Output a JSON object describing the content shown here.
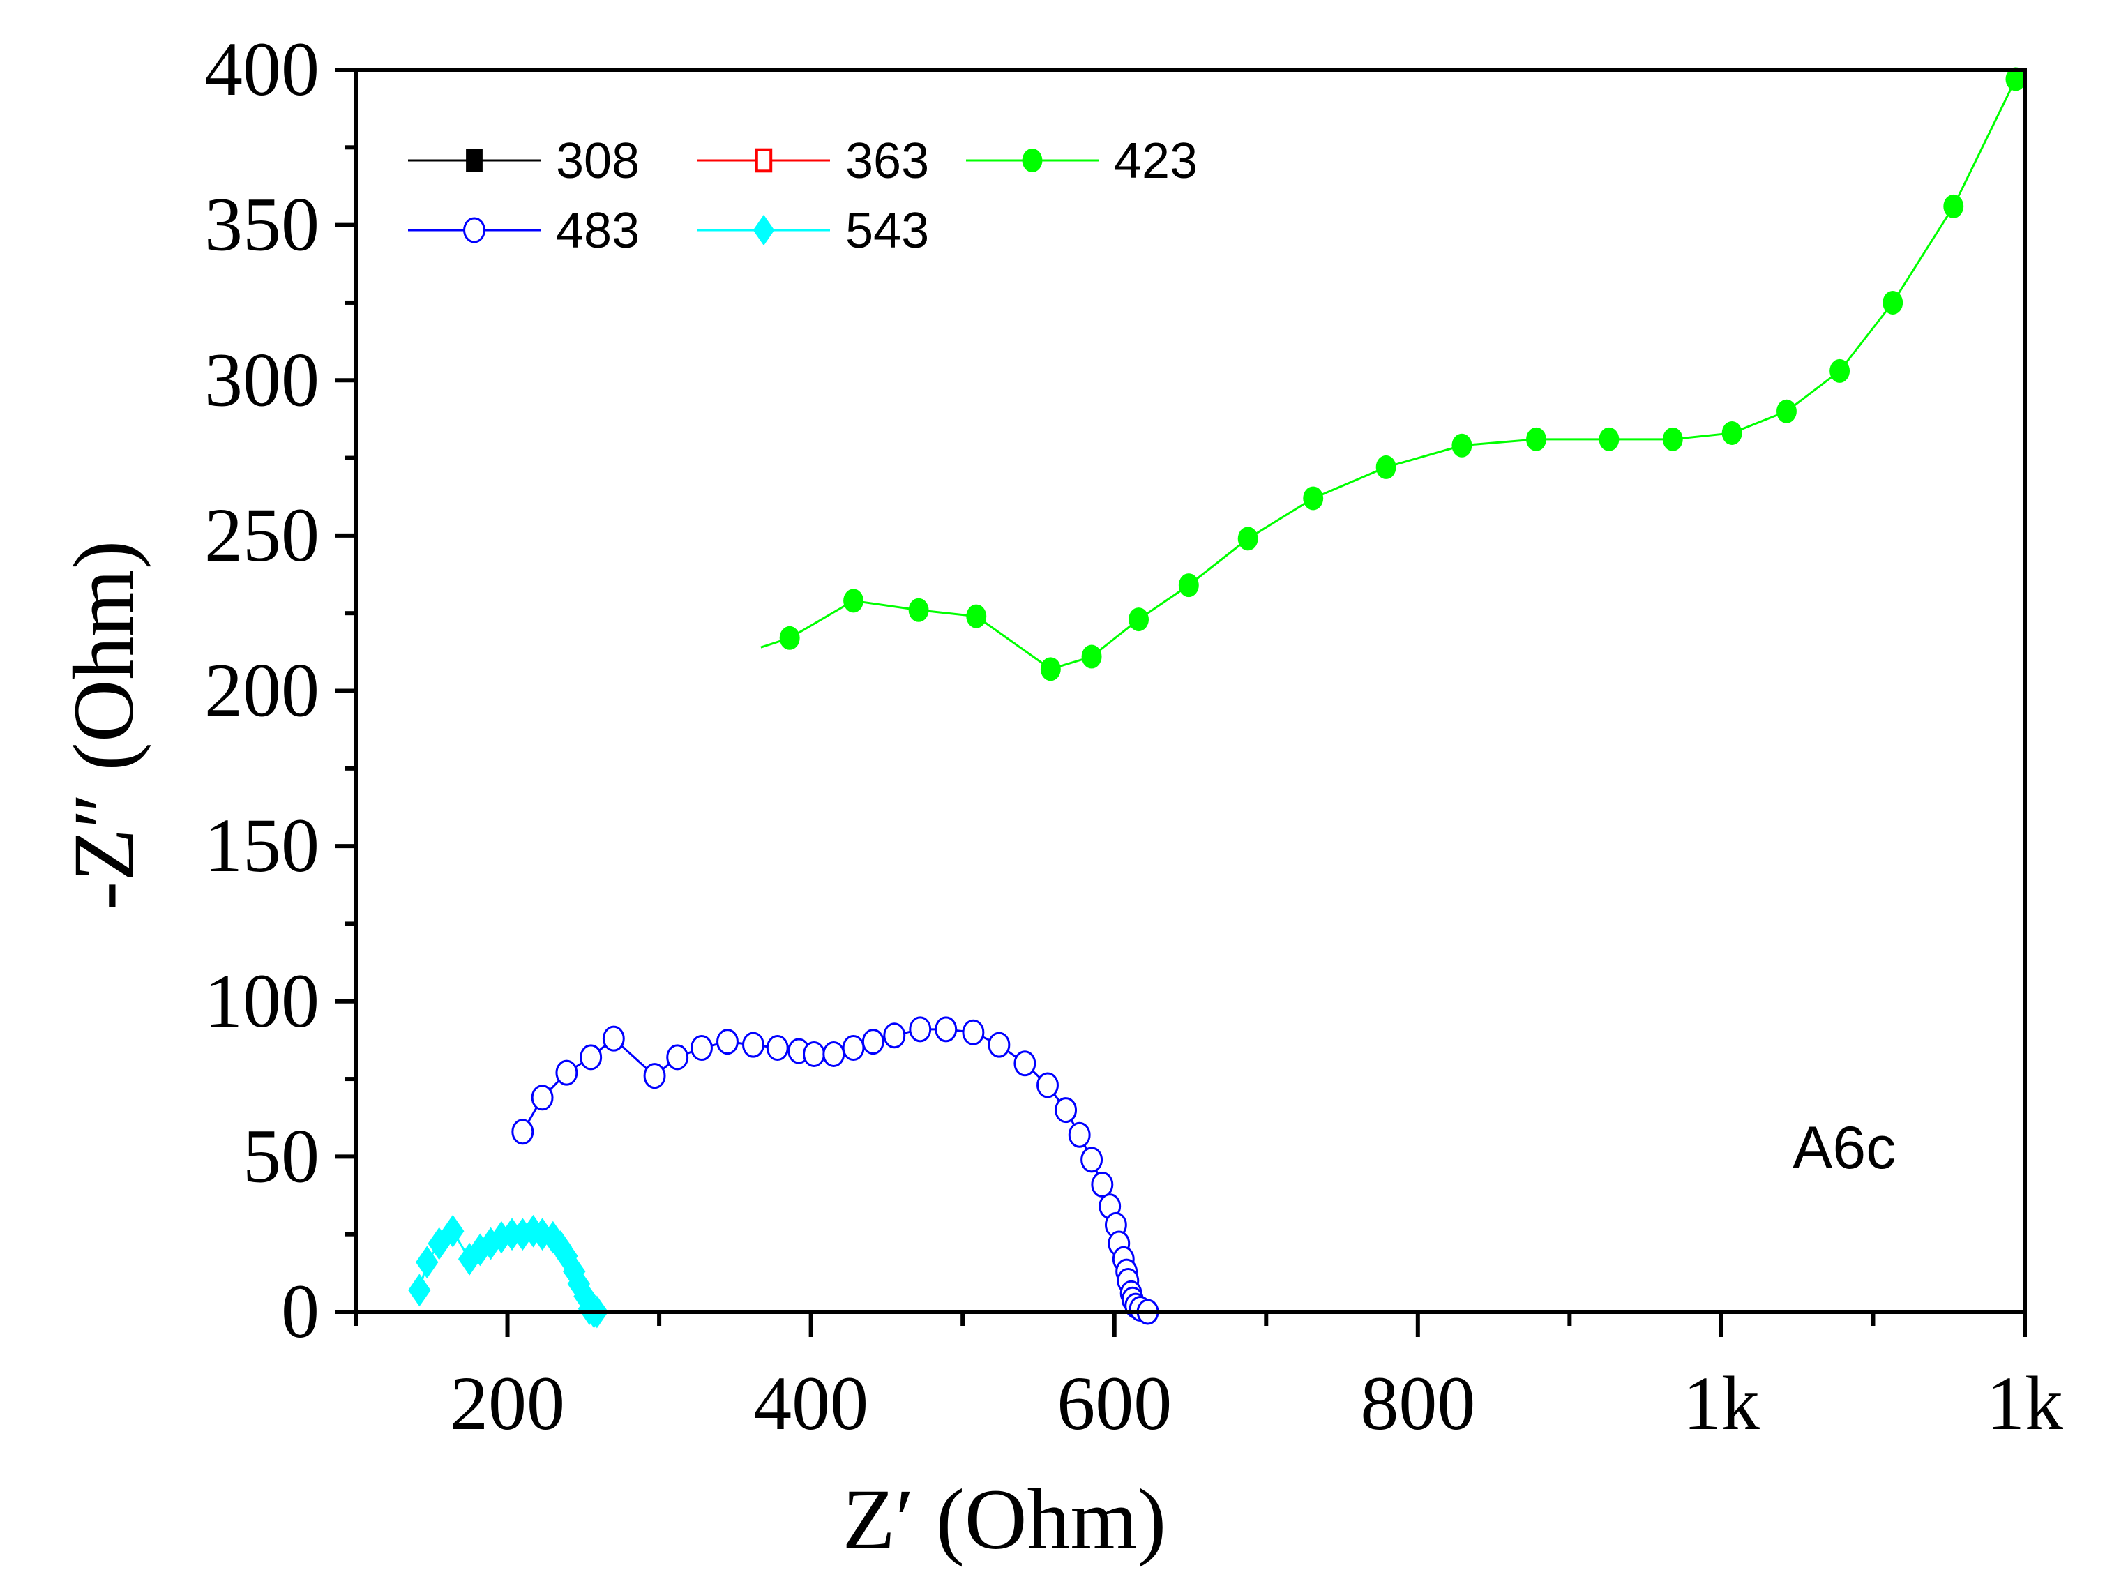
{
  "chart_data": {
    "type": "scatter",
    "title": "",
    "xlabel": "Z′ (Ohm)",
    "ylabel": "-Z″ (Ohm)",
    "xlim": [
      100,
      1200
    ],
    "ylim": [
      0,
      400
    ],
    "x_major_ticks": [
      200,
      400,
      600,
      800,
      1000,
      1200
    ],
    "x_tick_labels": [
      "200",
      "400",
      "600",
      "800",
      "1k",
      "1k"
    ],
    "x_minor_ticks": [
      100,
      300,
      500,
      700,
      900,
      1100
    ],
    "y_major_ticks": [
      0,
      50,
      100,
      150,
      200,
      250,
      300,
      350,
      400
    ],
    "y_tick_labels": [
      "0",
      "50",
      "100",
      "150",
      "200",
      "250",
      "300",
      "350",
      "400"
    ],
    "y_minor_ticks": [
      25,
      75,
      125,
      175,
      225,
      275,
      325,
      375
    ],
    "grid": false,
    "legend_position": "top-left",
    "annotation": "A6c",
    "series": [
      {
        "name": "308",
        "color": "#000000",
        "marker": "square-filled",
        "points": []
      },
      {
        "name": "363",
        "color": "#ff0000",
        "marker": "square-open",
        "points": []
      },
      {
        "name": "423",
        "color": "#00ff00",
        "marker": "circle-filled",
        "line_start": [
          367,
          214
        ],
        "points": [
          [
            386,
            217
          ],
          [
            428,
            229
          ],
          [
            471,
            226
          ],
          [
            509,
            224
          ],
          [
            558,
            207
          ],
          [
            585,
            211
          ],
          [
            616,
            223
          ],
          [
            649,
            234
          ],
          [
            688,
            249
          ],
          [
            731,
            262
          ],
          [
            779,
            272
          ],
          [
            829,
            279
          ],
          [
            878,
            281
          ],
          [
            926,
            281
          ],
          [
            968,
            281
          ],
          [
            1007,
            283
          ],
          [
            1043,
            290
          ],
          [
            1078,
            303
          ],
          [
            1113,
            325
          ],
          [
            1153,
            356
          ],
          [
            1194,
            397
          ]
        ]
      },
      {
        "name": "483",
        "color": "#0000ff",
        "marker": "circle-open",
        "points": [
          [
            210,
            58
          ],
          [
            223,
            69
          ],
          [
            239,
            77
          ],
          [
            255,
            82
          ],
          [
            270,
            88
          ],
          [
            297,
            76
          ],
          [
            312,
            82
          ],
          [
            328,
            85
          ],
          [
            345,
            87
          ],
          [
            362,
            86
          ],
          [
            378,
            85
          ],
          [
            392,
            84
          ],
          [
            402,
            83
          ],
          [
            415,
            83
          ],
          [
            428,
            85
          ],
          [
            441,
            87
          ],
          [
            455,
            89
          ],
          [
            472,
            91
          ],
          [
            489,
            91
          ],
          [
            507,
            90
          ],
          [
            524,
            86
          ],
          [
            541,
            80
          ],
          [
            556,
            73
          ],
          [
            568,
            65
          ],
          [
            577,
            57
          ],
          [
            585,
            49
          ],
          [
            592,
            41
          ],
          [
            597,
            34
          ],
          [
            601,
            28
          ],
          [
            603,
            22
          ],
          [
            606,
            17
          ],
          [
            608,
            13
          ],
          [
            609,
            10
          ],
          [
            611,
            6
          ],
          [
            612,
            4
          ],
          [
            614,
            2
          ],
          [
            617,
            1
          ],
          [
            622,
            0
          ]
        ]
      },
      {
        "name": "543",
        "color": "#00ffff",
        "marker": "diamond-filled",
        "points": [
          [
            142,
            7
          ],
          [
            147,
            16
          ],
          [
            155,
            22
          ],
          [
            164,
            26
          ],
          [
            175,
            17
          ],
          [
            182,
            20
          ],
          [
            189,
            22
          ],
          [
            196,
            24
          ],
          [
            203,
            25
          ],
          [
            210,
            25
          ],
          [
            217,
            26
          ],
          [
            223,
            25
          ],
          [
            230,
            24
          ],
          [
            235,
            21
          ],
          [
            239,
            18
          ],
          [
            244,
            13
          ],
          [
            247,
            9
          ],
          [
            251,
            5
          ],
          [
            254,
            1
          ],
          [
            257,
            0
          ],
          [
            259,
            0
          ]
        ]
      }
    ]
  }
}
